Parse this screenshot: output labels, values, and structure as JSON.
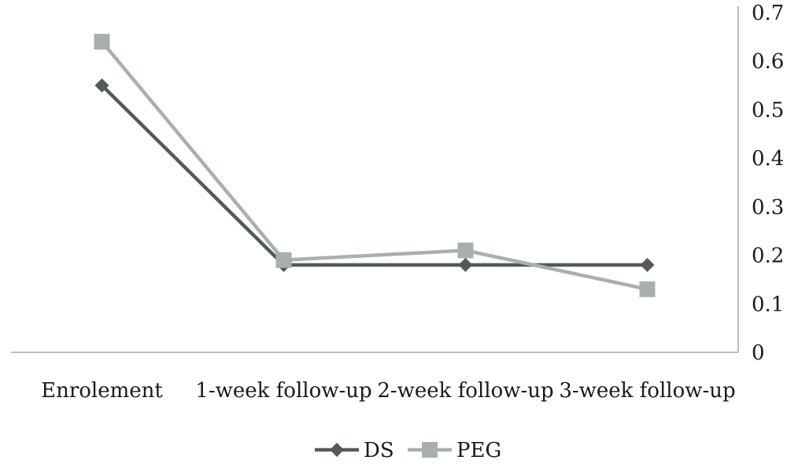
{
  "chart_data": {
    "type": "line",
    "categories": [
      "Enrolement",
      "1-week follow-up",
      "2-week follow-up",
      "3-week follow-up"
    ],
    "series": [
      {
        "name": "DS",
        "values": [
          0.55,
          0.18,
          0.18,
          0.18
        ],
        "color": "#525a5a",
        "marker": "diamond"
      },
      {
        "name": "PEG",
        "values": [
          0.64,
          0.19,
          0.21,
          0.13
        ],
        "color": "#a8b0ad",
        "marker": "square"
      }
    ],
    "ylim": [
      0,
      0.7
    ],
    "yticks": [
      "0",
      "0.1",
      "0.2",
      "0.3",
      "0.4",
      "0.5",
      "0.6",
      "0.7"
    ],
    "y_axis_side": "right",
    "grid": false,
    "legend": "bottom",
    "title": "",
    "xlabel": "",
    "ylabel": ""
  }
}
